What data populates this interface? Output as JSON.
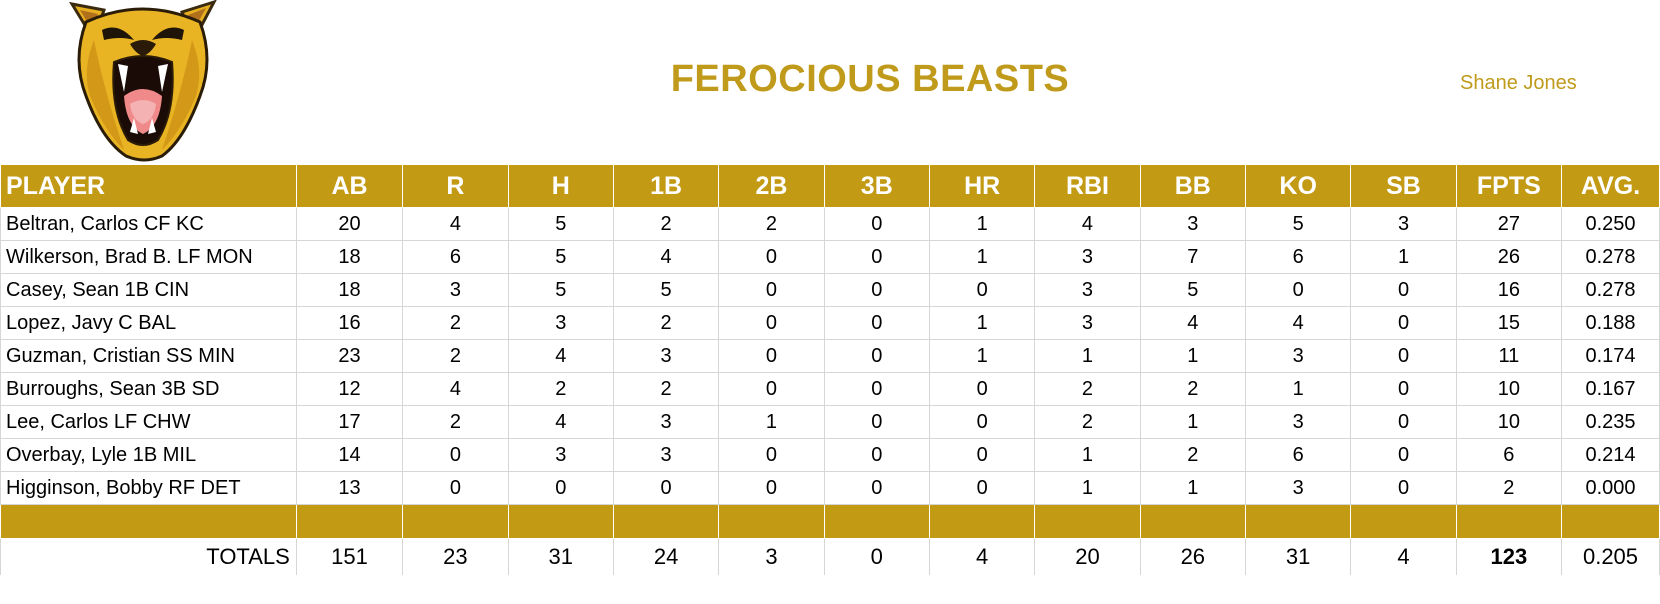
{
  "header": {
    "team_name": "FEROCIOUS BEASTS",
    "owner": "Shane Jones",
    "logo": "roaring-cougar-logo"
  },
  "table": {
    "columns": [
      "PLAYER",
      "AB",
      "R",
      "H",
      "1B",
      "2B",
      "3B",
      "HR",
      "RBI",
      "BB",
      "KO",
      "SB",
      "FPTS",
      "AVG."
    ],
    "rows": [
      [
        "Beltran, Carlos CF KC",
        "20",
        "4",
        "5",
        "2",
        "2",
        "0",
        "1",
        "4",
        "3",
        "5",
        "3",
        "27",
        "0.250"
      ],
      [
        "Wilkerson, Brad B. LF MON",
        "18",
        "6",
        "5",
        "4",
        "0",
        "0",
        "1",
        "3",
        "7",
        "6",
        "1",
        "26",
        "0.278"
      ],
      [
        "Casey, Sean 1B CIN",
        "18",
        "3",
        "5",
        "5",
        "0",
        "0",
        "0",
        "3",
        "5",
        "0",
        "0",
        "16",
        "0.278"
      ],
      [
        "Lopez, Javy C BAL",
        "16",
        "2",
        "3",
        "2",
        "0",
        "0",
        "1",
        "3",
        "4",
        "4",
        "0",
        "15",
        "0.188"
      ],
      [
        "Guzman, Cristian SS MIN",
        "23",
        "2",
        "4",
        "3",
        "0",
        "0",
        "1",
        "1",
        "1",
        "3",
        "0",
        "11",
        "0.174"
      ],
      [
        "Burroughs, Sean 3B SD",
        "12",
        "4",
        "2",
        "2",
        "0",
        "0",
        "0",
        "2",
        "2",
        "1",
        "0",
        "10",
        "0.167"
      ],
      [
        "Lee, Carlos LF CHW",
        "17",
        "2",
        "4",
        "3",
        "1",
        "0",
        "0",
        "2",
        "1",
        "3",
        "0",
        "10",
        "0.235"
      ],
      [
        "Overbay, Lyle 1B MIL",
        "14",
        "0",
        "3",
        "3",
        "0",
        "0",
        "0",
        "1",
        "2",
        "6",
        "0",
        "6",
        "0.214"
      ],
      [
        "Higginson, Bobby RF DET",
        "13",
        "0",
        "0",
        "0",
        "0",
        "0",
        "0",
        "1",
        "1",
        "3",
        "0",
        "2",
        "0.000"
      ]
    ],
    "totals": [
      "TOTALS",
      "151",
      "23",
      "31",
      "24",
      "3",
      "0",
      "4",
      "20",
      "26",
      "31",
      "4",
      "123",
      "0.205"
    ]
  },
  "colors": {
    "accent": "#C39A14",
    "title": "#C09A1A",
    "gridline": "#d6d6d6"
  }
}
